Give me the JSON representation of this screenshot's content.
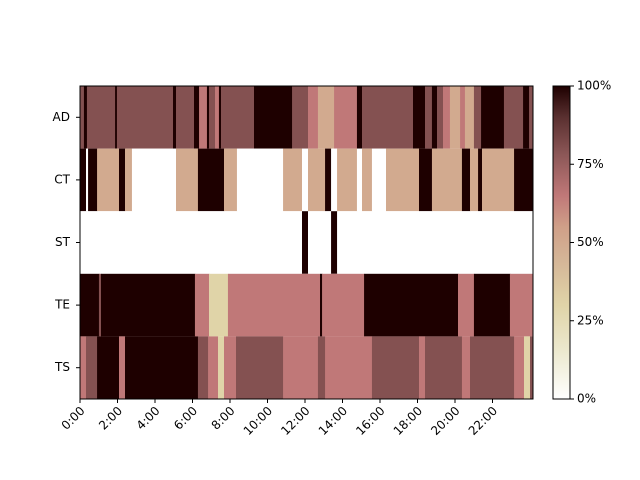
{
  "chart_data": {
    "type": "heatmap",
    "colormap": "pink_r",
    "xlim": [
      0,
      24.16
    ],
    "xticks": [
      {
        "value": 0,
        "label": "0:00"
      },
      {
        "value": 2,
        "label": "2:00"
      },
      {
        "value": 4,
        "label": "4:00"
      },
      {
        "value": 6,
        "label": "6:00"
      },
      {
        "value": 8,
        "label": "8:00"
      },
      {
        "value": 10,
        "label": "10:00"
      },
      {
        "value": 12,
        "label": "12:00"
      },
      {
        "value": 14,
        "label": "14:00"
      },
      {
        "value": 16,
        "label": "16:00"
      },
      {
        "value": 18,
        "label": "18:00"
      },
      {
        "value": 20,
        "label": "20:00"
      },
      {
        "value": 22,
        "label": "22:00"
      }
    ],
    "clim": [
      0,
      100
    ],
    "cticks": [
      {
        "value": 0,
        "label": "0%"
      },
      {
        "value": 25,
        "label": "25%"
      },
      {
        "value": 50,
        "label": "50%"
      },
      {
        "value": 75,
        "label": "75%"
      },
      {
        "value": 100,
        "label": "100%"
      }
    ],
    "series": [
      {
        "name": "AD",
        "edges": [
          0,
          0.21,
          0.37,
          1.87,
          1.97,
          4.96,
          5.12,
          6.08,
          6.35,
          6.77,
          6.88,
          7.2,
          7.41,
          7.52,
          9.28,
          11.31,
          12.16,
          12.69,
          13.55,
          14.77,
          15.04,
          17.76,
          18.4,
          18.77,
          19.04,
          19.36,
          19.73,
          20.27,
          20.53,
          21.01,
          21.39,
          22.61,
          23.63,
          23.95,
          24.16
        ],
        "values": [
          80,
          100,
          80,
          100,
          80,
          100,
          80,
          100,
          65,
          100,
          80,
          65,
          100,
          80,
          100,
          80,
          65,
          50,
          65,
          100,
          80,
          100,
          80,
          100,
          80,
          65,
          50,
          65,
          50,
          80,
          100,
          80,
          100,
          80
        ]
      },
      {
        "name": "CT",
        "edges": [
          0,
          0.32,
          0.43,
          0.91,
          2.08,
          2.4,
          2.77,
          5.12,
          6.29,
          7.68,
          8.37,
          10.83,
          11.84,
          12.16,
          13.07,
          13.39,
          13.71,
          14.77,
          15.04,
          15.57,
          16.32,
          18.08,
          18.77,
          20.37,
          20.8,
          21.23,
          21.44,
          23.15,
          24.16
        ],
        "values": [
          100,
          0,
          100,
          50,
          100,
          50,
          0,
          50,
          100,
          50,
          0,
          50,
          0,
          50,
          100,
          0,
          50,
          0,
          50,
          0,
          50,
          100,
          50,
          100,
          50,
          100,
          50,
          100
        ]
      },
      {
        "name": "ST",
        "edges": [
          0,
          11.84,
          12.16,
          13.39,
          13.71,
          24.16
        ],
        "values": [
          0,
          100,
          0,
          100,
          0
        ]
      },
      {
        "name": "TE",
        "edges": [
          0,
          1.01,
          1.12,
          6.13,
          6.88,
          7.89,
          12.8,
          12.91,
          15.15,
          20.16,
          21.01,
          22.93,
          24.16
        ],
        "values": [
          100,
          80,
          100,
          65,
          30,
          65,
          100,
          65,
          100,
          65,
          100,
          65
        ]
      },
      {
        "name": "TS",
        "edges": [
          0,
          0.32,
          0.91,
          2.08,
          2.4,
          6.29,
          6.83,
          7.36,
          7.68,
          8.32,
          10.83,
          12.69,
          13.07,
          15.57,
          18.08,
          18.4,
          20.37,
          20.8,
          23.15,
          23.68,
          24.0,
          24.16
        ],
        "values": [
          65,
          80,
          100,
          65,
          100,
          80,
          65,
          30,
          65,
          80,
          65,
          80,
          65,
          80,
          65,
          80,
          65,
          80,
          65,
          30,
          80
        ]
      }
    ]
  }
}
